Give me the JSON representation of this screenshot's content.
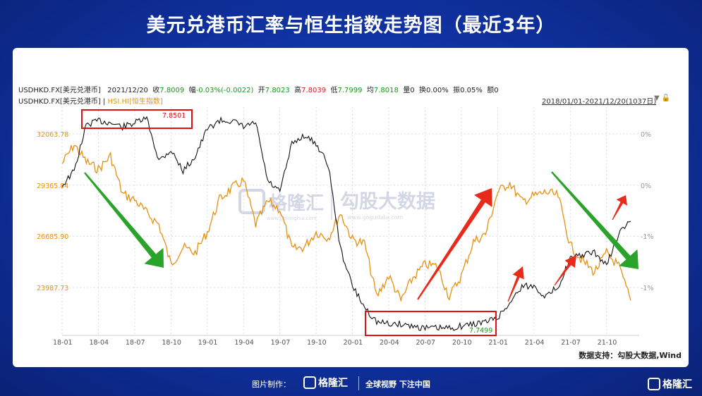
{
  "title": "美元兑港币汇率与恒生指数走势图（最近3年）",
  "info_bar": {
    "symbol": "USDHKD.FX[美元兑港币]",
    "date": "2021/12/20",
    "close_label": "收",
    "close": "7.8009",
    "change_label": "幅",
    "change": "-0.03%(-0.0022)",
    "open_label": "开",
    "open": "7.8023",
    "high_label": "高",
    "high": "7.8039",
    "low_label": "低",
    "low": "7.7999",
    "avg_label": "均",
    "avg": "7.8018",
    "volume": "量0",
    "turnover": "换0.00%",
    "amplitude": "振0.05%",
    "amount": "额0"
  },
  "legend": {
    "series1": "USDHKD.FX[美元兑港币]",
    "separator": "|",
    "series2": "HSI.HI[恒生指数]"
  },
  "date_range": "2018/01/01-2021/12/20(1037日)",
  "source": "数据支持：勾股大数据,Wind",
  "watermark": {
    "brand1": "格隆汇",
    "brand1_sub": "www.gelonghui.com",
    "brand2": "勾股大数据",
    "brand2_sub": "www.gogudata.com"
  },
  "footer": {
    "made_by": "图片制作：",
    "logo": "格隆汇",
    "slogan": "全球视野 下注中国",
    "corner_logo": "格隆汇"
  },
  "colors": {
    "hsi": "#e8900f",
    "usdhkd": "#111111",
    "highlight": "#e01010",
    "up_arrow": "#e82a1a",
    "down_arrow": "#2aa32a"
  },
  "chart_data": {
    "type": "line",
    "x_ticks": [
      "18-01",
      "18-04",
      "18-07",
      "18-10",
      "19-01",
      "19-04",
      "19-07",
      "19-10",
      "20-01",
      "20-04",
      "20-07",
      "20-10",
      "21-01",
      "21-04",
      "21-07",
      "21-10"
    ],
    "left_axis": {
      "series": "HSI.HI",
      "ticks": [
        "32063.78",
        "29365.84",
        "26685.90",
        "23987.73"
      ]
    },
    "right_axis": {
      "ticks": [
        "0%",
        "0%",
        "-1%",
        "-1%"
      ]
    },
    "annotations": {
      "high_label": "7.8501",
      "low_label": "7.7499"
    },
    "series": [
      {
        "name": "HSI.HI[恒生指数]",
        "x": [
          "2018-01",
          "2018-02",
          "2018-03",
          "2018-04",
          "2018-05",
          "2018-06",
          "2018-07",
          "2018-08",
          "2018-09",
          "2018-10",
          "2018-11",
          "2018-12",
          "2019-01",
          "2019-02",
          "2019-03",
          "2019-04",
          "2019-05",
          "2019-06",
          "2019-07",
          "2019-08",
          "2019-09",
          "2019-10",
          "2019-11",
          "2019-12",
          "2020-01",
          "2020-02",
          "2020-03",
          "2020-04",
          "2020-05",
          "2020-06",
          "2020-07",
          "2020-08",
          "2020-09",
          "2020-10",
          "2020-11",
          "2020-12",
          "2021-01",
          "2021-02",
          "2021-03",
          "2021-04",
          "2021-05",
          "2021-06",
          "2021-07",
          "2021-08",
          "2021-09",
          "2021-10",
          "2021-11",
          "2021-12"
        ],
        "values": [
          30500,
          31500,
          30600,
          30200,
          30900,
          28900,
          28600,
          27900,
          27300,
          25200,
          26100,
          25800,
          26900,
          28600,
          29200,
          29600,
          27300,
          28500,
          28100,
          26000,
          26100,
          26900,
          26600,
          27900,
          26500,
          26300,
          23500,
          24600,
          23300,
          24500,
          25200,
          25100,
          23500,
          24600,
          26400,
          26800,
          29000,
          29500,
          28500,
          28800,
          29000,
          28800,
          26200,
          25400,
          24800,
          25800,
          25100,
          23300
        ]
      },
      {
        "name": "USDHKD.FX[美元兑港币]",
        "x": [
          "2018-01",
          "2018-02",
          "2018-03",
          "2018-04",
          "2018-05",
          "2018-06",
          "2018-07",
          "2018-08",
          "2018-09",
          "2018-10",
          "2018-11",
          "2018-12",
          "2019-01",
          "2019-02",
          "2019-03",
          "2019-04",
          "2019-05",
          "2019-06",
          "2019-07",
          "2019-08",
          "2019-09",
          "2019-10",
          "2019-11",
          "2019-12",
          "2020-01",
          "2020-02",
          "2020-03",
          "2020-04",
          "2020-05",
          "2020-06",
          "2020-07",
          "2020-08",
          "2020-09",
          "2020-10",
          "2020-11",
          "2020-12",
          "2021-01",
          "2021-02",
          "2021-03",
          "2021-04",
          "2021-05",
          "2021-06",
          "2021-07",
          "2021-08",
          "2021-09",
          "2021-10",
          "2021-11",
          "2021-12"
        ],
        "values": [
          7.818,
          7.825,
          7.847,
          7.849,
          7.848,
          7.846,
          7.848,
          7.85,
          7.83,
          7.835,
          7.825,
          7.832,
          7.845,
          7.849,
          7.849,
          7.846,
          7.848,
          7.82,
          7.815,
          7.838,
          7.842,
          7.838,
          7.828,
          7.788,
          7.77,
          7.76,
          7.753,
          7.752,
          7.752,
          7.751,
          7.75,
          7.75,
          7.75,
          7.751,
          7.752,
          7.753,
          7.755,
          7.762,
          7.77,
          7.77,
          7.765,
          7.77,
          7.783,
          7.785,
          7.786,
          7.78,
          7.795,
          7.801
        ]
      }
    ]
  }
}
